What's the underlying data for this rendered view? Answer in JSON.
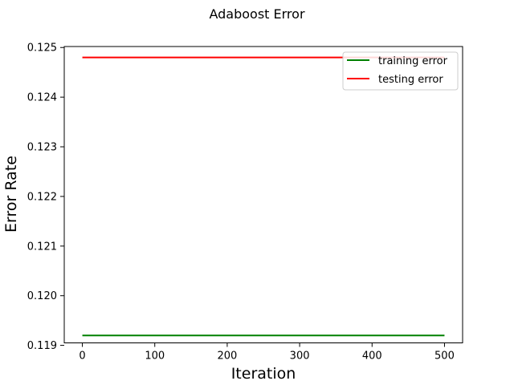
{
  "chart_data": {
    "type": "line",
    "title": "Adaboost Error",
    "xlabel": "Iteration",
    "ylabel": "Error Rate",
    "xlim": [
      -25,
      525
    ],
    "ylim": [
      0.11905,
      0.12502
    ],
    "xticks": [
      0,
      100,
      200,
      300,
      400,
      500
    ],
    "xtick_labels": [
      "0",
      "100",
      "200",
      "300",
      "400",
      "500"
    ],
    "yticks": [
      0.119,
      0.12,
      0.121,
      0.122,
      0.123,
      0.124,
      0.125
    ],
    "ytick_labels": [
      "0.119",
      "0.120",
      "0.121",
      "0.122",
      "0.123",
      "0.124",
      "0.125"
    ],
    "grid": false,
    "legend_position": "top-right",
    "series": [
      {
        "name": "training error",
        "color": "#008000",
        "x": [
          0,
          500
        ],
        "y": [
          0.1192,
          0.1192
        ]
      },
      {
        "name": "testing error",
        "color": "#ff0000",
        "x": [
          0,
          500
        ],
        "y": [
          0.1248,
          0.1248
        ]
      }
    ]
  }
}
